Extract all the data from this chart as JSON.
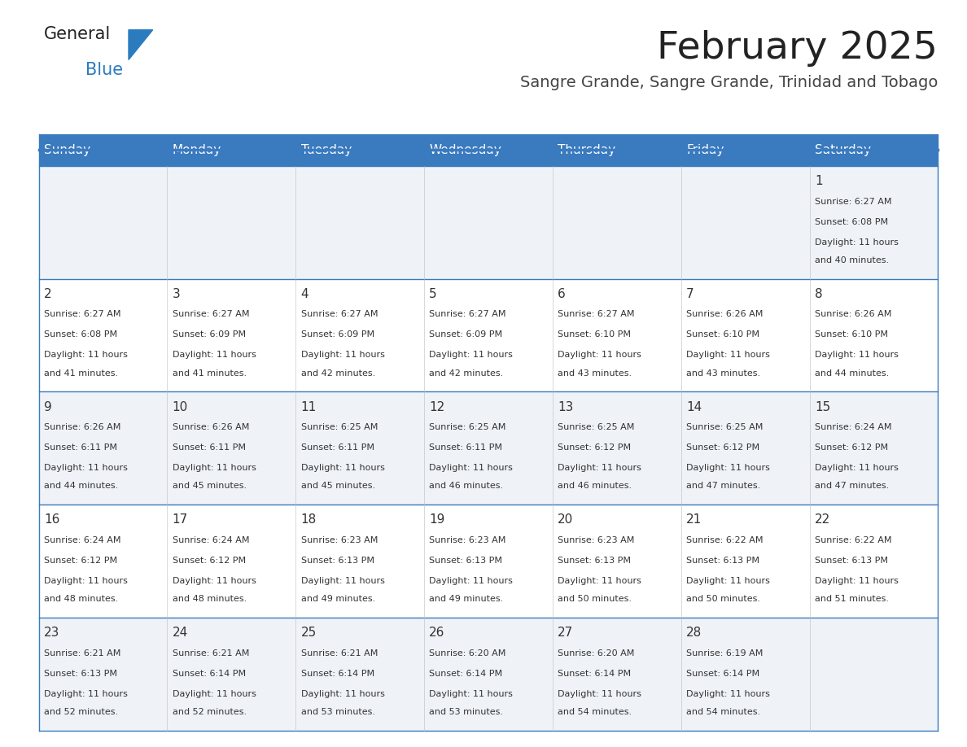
{
  "title": "February 2025",
  "subtitle": "Sangre Grande, Sangre Grande, Trinidad and Tobago",
  "header_bg": "#3a7abf",
  "header_text": "#ffffff",
  "day_names": [
    "Sunday",
    "Monday",
    "Tuesday",
    "Wednesday",
    "Thursday",
    "Friday",
    "Saturday"
  ],
  "row_bg": [
    "#eff3f8",
    "#ffffff",
    "#eff3f8",
    "#ffffff",
    "#eff3f8"
  ],
  "divider_color": "#3a7abf",
  "text_color": "#333333",
  "title_color": "#222222",
  "subtitle_color": "#444444",
  "logo_general_color": "#222222",
  "logo_blue_color": "#2b7bbf",
  "calendar": [
    [
      null,
      null,
      null,
      null,
      null,
      null,
      {
        "day": 1,
        "sunrise": "6:27 AM",
        "sunset": "6:08 PM",
        "daylight": "11 hours and 40 minutes."
      }
    ],
    [
      {
        "day": 2,
        "sunrise": "6:27 AM",
        "sunset": "6:08 PM",
        "daylight": "11 hours and 41 minutes."
      },
      {
        "day": 3,
        "sunrise": "6:27 AM",
        "sunset": "6:09 PM",
        "daylight": "11 hours and 41 minutes."
      },
      {
        "day": 4,
        "sunrise": "6:27 AM",
        "sunset": "6:09 PM",
        "daylight": "11 hours and 42 minutes."
      },
      {
        "day": 5,
        "sunrise": "6:27 AM",
        "sunset": "6:09 PM",
        "daylight": "11 hours and 42 minutes."
      },
      {
        "day": 6,
        "sunrise": "6:27 AM",
        "sunset": "6:10 PM",
        "daylight": "11 hours and 43 minutes."
      },
      {
        "day": 7,
        "sunrise": "6:26 AM",
        "sunset": "6:10 PM",
        "daylight": "11 hours and 43 minutes."
      },
      {
        "day": 8,
        "sunrise": "6:26 AM",
        "sunset": "6:10 PM",
        "daylight": "11 hours and 44 minutes."
      }
    ],
    [
      {
        "day": 9,
        "sunrise": "6:26 AM",
        "sunset": "6:11 PM",
        "daylight": "11 hours and 44 minutes."
      },
      {
        "day": 10,
        "sunrise": "6:26 AM",
        "sunset": "6:11 PM",
        "daylight": "11 hours and 45 minutes."
      },
      {
        "day": 11,
        "sunrise": "6:25 AM",
        "sunset": "6:11 PM",
        "daylight": "11 hours and 45 minutes."
      },
      {
        "day": 12,
        "sunrise": "6:25 AM",
        "sunset": "6:11 PM",
        "daylight": "11 hours and 46 minutes."
      },
      {
        "day": 13,
        "sunrise": "6:25 AM",
        "sunset": "6:12 PM",
        "daylight": "11 hours and 46 minutes."
      },
      {
        "day": 14,
        "sunrise": "6:25 AM",
        "sunset": "6:12 PM",
        "daylight": "11 hours and 47 minutes."
      },
      {
        "day": 15,
        "sunrise": "6:24 AM",
        "sunset": "6:12 PM",
        "daylight": "11 hours and 47 minutes."
      }
    ],
    [
      {
        "day": 16,
        "sunrise": "6:24 AM",
        "sunset": "6:12 PM",
        "daylight": "11 hours and 48 minutes."
      },
      {
        "day": 17,
        "sunrise": "6:24 AM",
        "sunset": "6:12 PM",
        "daylight": "11 hours and 48 minutes."
      },
      {
        "day": 18,
        "sunrise": "6:23 AM",
        "sunset": "6:13 PM",
        "daylight": "11 hours and 49 minutes."
      },
      {
        "day": 19,
        "sunrise": "6:23 AM",
        "sunset": "6:13 PM",
        "daylight": "11 hours and 49 minutes."
      },
      {
        "day": 20,
        "sunrise": "6:23 AM",
        "sunset": "6:13 PM",
        "daylight": "11 hours and 50 minutes."
      },
      {
        "day": 21,
        "sunrise": "6:22 AM",
        "sunset": "6:13 PM",
        "daylight": "11 hours and 50 minutes."
      },
      {
        "day": 22,
        "sunrise": "6:22 AM",
        "sunset": "6:13 PM",
        "daylight": "11 hours and 51 minutes."
      }
    ],
    [
      {
        "day": 23,
        "sunrise": "6:21 AM",
        "sunset": "6:13 PM",
        "daylight": "11 hours and 52 minutes."
      },
      {
        "day": 24,
        "sunrise": "6:21 AM",
        "sunset": "6:14 PM",
        "daylight": "11 hours and 52 minutes."
      },
      {
        "day": 25,
        "sunrise": "6:21 AM",
        "sunset": "6:14 PM",
        "daylight": "11 hours and 53 minutes."
      },
      {
        "day": 26,
        "sunrise": "6:20 AM",
        "sunset": "6:14 PM",
        "daylight": "11 hours and 53 minutes."
      },
      {
        "day": 27,
        "sunrise": "6:20 AM",
        "sunset": "6:14 PM",
        "daylight": "11 hours and 54 minutes."
      },
      {
        "day": 28,
        "sunrise": "6:19 AM",
        "sunset": "6:14 PM",
        "daylight": "11 hours and 54 minutes."
      },
      null
    ]
  ]
}
